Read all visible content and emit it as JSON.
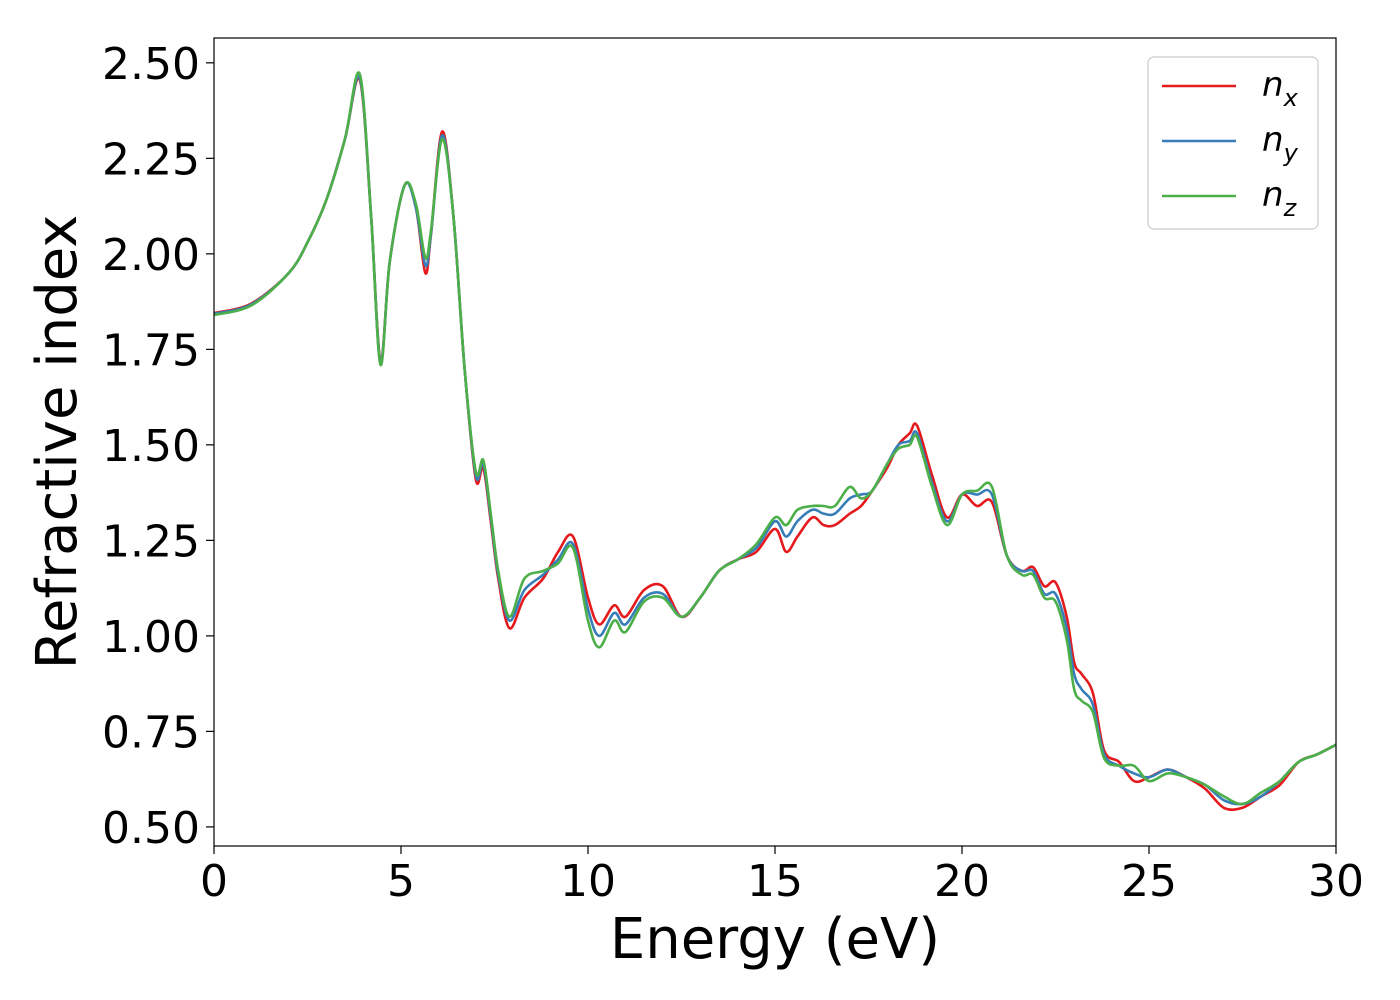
{
  "chart_data": {
    "type": "line",
    "xlabel": "Energy (eV)",
    "ylabel": "Refractive index",
    "xlim": [
      0,
      30
    ],
    "ylim": [
      0.45,
      2.565
    ],
    "xticks": [
      0,
      5,
      10,
      15,
      20,
      25,
      30
    ],
    "xtick_labels": [
      "0",
      "5",
      "10",
      "15",
      "20",
      "25",
      "30"
    ],
    "yticks": [
      0.5,
      0.75,
      1.0,
      1.25,
      1.5,
      1.75,
      2.0,
      2.25,
      2.5
    ],
    "ytick_labels": [
      "0.50",
      "0.75",
      "1.00",
      "1.25",
      "1.50",
      "1.75",
      "2.00",
      "2.25",
      "2.50"
    ],
    "grid": false,
    "legend_position": "top-right",
    "series": [
      {
        "name": "n",
        "subscript": "x",
        "color": "#e41a1c",
        "x": [
          0,
          1,
          2,
          2.5,
          3,
          3.5,
          3.9,
          4.2,
          4.45,
          4.7,
          5.1,
          5.4,
          5.65,
          5.8,
          6.1,
          6.4,
          6.7,
          7.0,
          7.2,
          7.4,
          7.6,
          7.9,
          8.3,
          8.8,
          9.2,
          9.6,
          10.0,
          10.3,
          10.7,
          11.0,
          11.5,
          12.0,
          12.5,
          13.0,
          13.5,
          14.0,
          14.5,
          15.0,
          15.3,
          15.6,
          16.0,
          16.3,
          16.6,
          17.0,
          17.3,
          17.6,
          18.0,
          18.3,
          18.6,
          18.8,
          19.2,
          19.6,
          20.0,
          20.4,
          20.8,
          21.2,
          21.6,
          21.9,
          22.2,
          22.5,
          22.8,
          23.0,
          23.2,
          23.5,
          23.8,
          24.2,
          24.6,
          25.0,
          25.5,
          26.0,
          26.5,
          27.0,
          27.5,
          28.0,
          28.5,
          29.0,
          29.5,
          30.0
        ],
        "values": [
          1.845,
          1.87,
          1.95,
          2.03,
          2.14,
          2.3,
          2.455,
          2.1,
          1.72,
          1.98,
          2.18,
          2.12,
          1.95,
          2.05,
          2.32,
          2.1,
          1.7,
          1.41,
          1.44,
          1.3,
          1.15,
          1.02,
          1.1,
          1.15,
          1.22,
          1.26,
          1.1,
          1.03,
          1.08,
          1.05,
          1.12,
          1.13,
          1.05,
          1.1,
          1.17,
          1.2,
          1.22,
          1.28,
          1.22,
          1.26,
          1.31,
          1.29,
          1.29,
          1.32,
          1.34,
          1.38,
          1.44,
          1.5,
          1.53,
          1.55,
          1.42,
          1.31,
          1.37,
          1.34,
          1.35,
          1.21,
          1.17,
          1.18,
          1.13,
          1.14,
          1.05,
          0.93,
          0.9,
          0.85,
          0.7,
          0.67,
          0.62,
          0.63,
          0.65,
          0.63,
          0.6,
          0.55,
          0.55,
          0.58,
          0.61,
          0.67,
          0.69,
          0.715
        ]
      },
      {
        "name": "n",
        "subscript": "y",
        "color": "#377eb8",
        "x": [
          0,
          1,
          2,
          2.5,
          3,
          3.5,
          3.9,
          4.2,
          4.45,
          4.7,
          5.1,
          5.4,
          5.65,
          5.8,
          6.1,
          6.4,
          6.7,
          7.0,
          7.2,
          7.4,
          7.6,
          7.9,
          8.3,
          8.8,
          9.2,
          9.6,
          10.0,
          10.3,
          10.7,
          11.0,
          11.5,
          12.0,
          12.5,
          13.0,
          13.5,
          14.0,
          14.5,
          15.0,
          15.3,
          15.6,
          16.0,
          16.3,
          16.6,
          17.0,
          17.3,
          17.6,
          18.0,
          18.3,
          18.6,
          18.8,
          19.2,
          19.6,
          20.0,
          20.4,
          20.8,
          21.2,
          21.6,
          21.9,
          22.2,
          22.5,
          22.8,
          23.0,
          23.2,
          23.5,
          23.8,
          24.2,
          24.6,
          25.0,
          25.5,
          26.0,
          26.5,
          27.0,
          27.5,
          28.0,
          28.5,
          29.0,
          29.5,
          30.0
        ],
        "values": [
          1.843,
          1.868,
          1.95,
          2.03,
          2.14,
          2.3,
          2.46,
          2.1,
          1.715,
          1.98,
          2.18,
          2.12,
          1.97,
          2.05,
          2.31,
          2.1,
          1.7,
          1.42,
          1.45,
          1.31,
          1.16,
          1.04,
          1.12,
          1.16,
          1.2,
          1.24,
          1.07,
          1.0,
          1.06,
          1.03,
          1.1,
          1.11,
          1.05,
          1.1,
          1.17,
          1.2,
          1.23,
          1.3,
          1.26,
          1.3,
          1.33,
          1.32,
          1.32,
          1.36,
          1.37,
          1.38,
          1.45,
          1.5,
          1.51,
          1.53,
          1.4,
          1.3,
          1.37,
          1.37,
          1.37,
          1.21,
          1.17,
          1.17,
          1.11,
          1.11,
          1.02,
          0.9,
          0.86,
          0.82,
          0.69,
          0.66,
          0.64,
          0.63,
          0.65,
          0.63,
          0.61,
          0.57,
          0.56,
          0.58,
          0.62,
          0.67,
          0.69,
          0.715
        ]
      },
      {
        "name": "n",
        "subscript": "z",
        "color": "#4daf4a",
        "x": [
          0,
          1,
          2,
          2.5,
          3,
          3.5,
          3.9,
          4.2,
          4.45,
          4.7,
          5.1,
          5.4,
          5.65,
          5.8,
          6.1,
          6.4,
          6.7,
          7.0,
          7.2,
          7.4,
          7.6,
          7.9,
          8.3,
          8.8,
          9.2,
          9.6,
          10.0,
          10.3,
          10.7,
          11.0,
          11.5,
          12.0,
          12.5,
          13.0,
          13.5,
          14.0,
          14.5,
          15.0,
          15.3,
          15.6,
          16.0,
          16.3,
          16.6,
          17.0,
          17.3,
          17.6,
          18.0,
          18.3,
          18.6,
          18.8,
          19.2,
          19.6,
          20.0,
          20.4,
          20.8,
          21.2,
          21.6,
          21.9,
          22.2,
          22.5,
          22.8,
          23.0,
          23.2,
          23.5,
          23.8,
          24.2,
          24.6,
          25.0,
          25.5,
          26.0,
          26.5,
          27.0,
          27.5,
          28.0,
          28.5,
          29.0,
          29.5,
          30.0
        ],
        "values": [
          1.84,
          1.865,
          1.95,
          2.03,
          2.14,
          2.3,
          2.47,
          2.1,
          1.71,
          1.98,
          2.18,
          2.13,
          1.99,
          2.06,
          2.3,
          2.1,
          1.7,
          1.43,
          1.46,
          1.32,
          1.17,
          1.05,
          1.15,
          1.17,
          1.19,
          1.23,
          1.04,
          0.97,
          1.04,
          1.01,
          1.09,
          1.1,
          1.05,
          1.1,
          1.17,
          1.2,
          1.24,
          1.31,
          1.29,
          1.33,
          1.34,
          1.34,
          1.34,
          1.39,
          1.36,
          1.38,
          1.45,
          1.49,
          1.5,
          1.52,
          1.39,
          1.29,
          1.37,
          1.38,
          1.39,
          1.21,
          1.16,
          1.16,
          1.1,
          1.09,
          0.99,
          0.86,
          0.83,
          0.8,
          0.68,
          0.66,
          0.66,
          0.62,
          0.64,
          0.63,
          0.61,
          0.58,
          0.56,
          0.59,
          0.62,
          0.67,
          0.69,
          0.715
        ]
      }
    ]
  }
}
